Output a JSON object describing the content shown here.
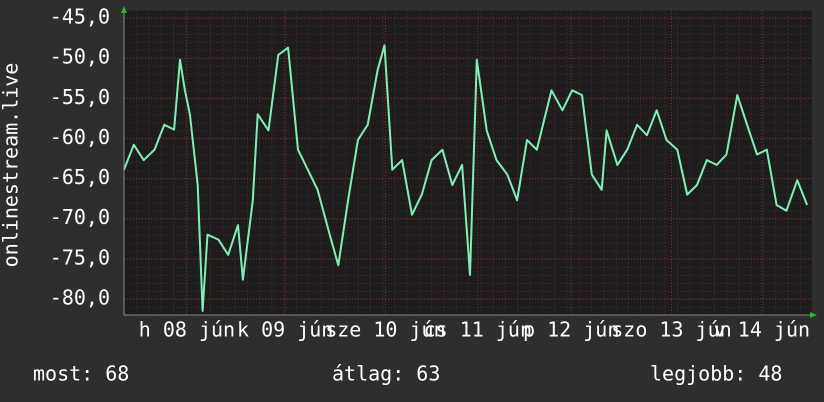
{
  "chart_data": {
    "type": "line",
    "y_label": "onlinestream.live",
    "color": "#7ff0b4",
    "grid": true,
    "xlim": [
      0,
      7
    ],
    "xticks": [
      {
        "value": 0.64,
        "label": "h 08 jún"
      },
      {
        "value": 1.64,
        "label": "k 09 jún"
      },
      {
        "value": 2.66,
        "label": "sze 10 jún"
      },
      {
        "value": 3.6,
        "label": "cs 11 jún"
      },
      {
        "value": 4.55,
        "label": "p 12 jún"
      },
      {
        "value": 5.57,
        "label": "szo 13 jún"
      },
      {
        "value": 6.49,
        "label": "v 14 jún"
      }
    ],
    "ylim": [
      -82,
      -44
    ],
    "yticks": [
      {
        "value": -45,
        "label": "-45,0"
      },
      {
        "value": -50,
        "label": "-50,0"
      },
      {
        "value": -55,
        "label": "-55,0"
      },
      {
        "value": -60,
        "label": "-60,0"
      },
      {
        "value": -65,
        "label": "-65,0"
      },
      {
        "value": -70,
        "label": "-70,0"
      },
      {
        "value": -75,
        "label": "-75,0"
      },
      {
        "value": -80,
        "label": "-80,0"
      }
    ],
    "x": [
      0,
      0.1,
      0.2,
      0.31,
      0.41,
      0.51,
      0.57,
      0.62,
      0.67,
      0.75,
      0.8,
      0.85,
      0.96,
      1.06,
      1.16,
      1.21,
      1.31,
      1.36,
      1.47,
      1.57,
      1.67,
      1.77,
      1.87,
      1.97,
      2.08,
      2.18,
      2.28,
      2.38,
      2.48,
      2.58,
      2.65,
      2.73,
      2.83,
      2.93,
      3.03,
      3.13,
      3.24,
      3.34,
      3.44,
      3.52,
      3.59,
      3.69,
      3.79,
      3.9,
      4.0,
      4.1,
      4.2,
      4.35,
      4.46,
      4.56,
      4.66,
      4.76,
      4.86,
      4.91,
      5.02,
      5.12,
      5.22,
      5.32,
      5.42,
      5.52,
      5.63,
      5.73,
      5.83,
      5.93,
      6.03,
      6.13,
      6.24,
      6.34,
      6.44,
      6.54,
      6.64,
      6.74,
      6.85,
      6.95
    ],
    "values": [
      -63.9,
      -60.8,
      -62.7,
      -61.4,
      -58.3,
      -58.9,
      -50.2,
      -54,
      -57,
      -65.8,
      -81.5,
      -72,
      -72.6,
      -74.5,
      -70.8,
      -77.6,
      -67.7,
      -57,
      -59,
      -49.6,
      -48.7,
      -61.4,
      -63.9,
      -66.4,
      -71.4,
      -75.8,
      -67.7,
      -60.2,
      -58.3,
      -51.5,
      -48.4,
      -63.9,
      -62.7,
      -69.5,
      -67,
      -62.7,
      -61.4,
      -65.8,
      -63.3,
      -77,
      -50.2,
      -59,
      -62.7,
      -64.5,
      -67.7,
      -60.2,
      -61.4,
      -54,
      -56.5,
      -54,
      -54.6,
      -64.5,
      -66.4,
      -59,
      -63.3,
      -61.4,
      -58.3,
      -59.6,
      -56.5,
      -60.2,
      -61.4,
      -67,
      -65.8,
      -62.7,
      -63.3,
      -62,
      -54.6,
      -58.3,
      -62,
      -61.4,
      -68.3,
      -69,
      -65.2,
      -68.3
    ],
    "stats": [
      "most: 68",
      "átlag: 63",
      "legjobb: 48"
    ]
  }
}
